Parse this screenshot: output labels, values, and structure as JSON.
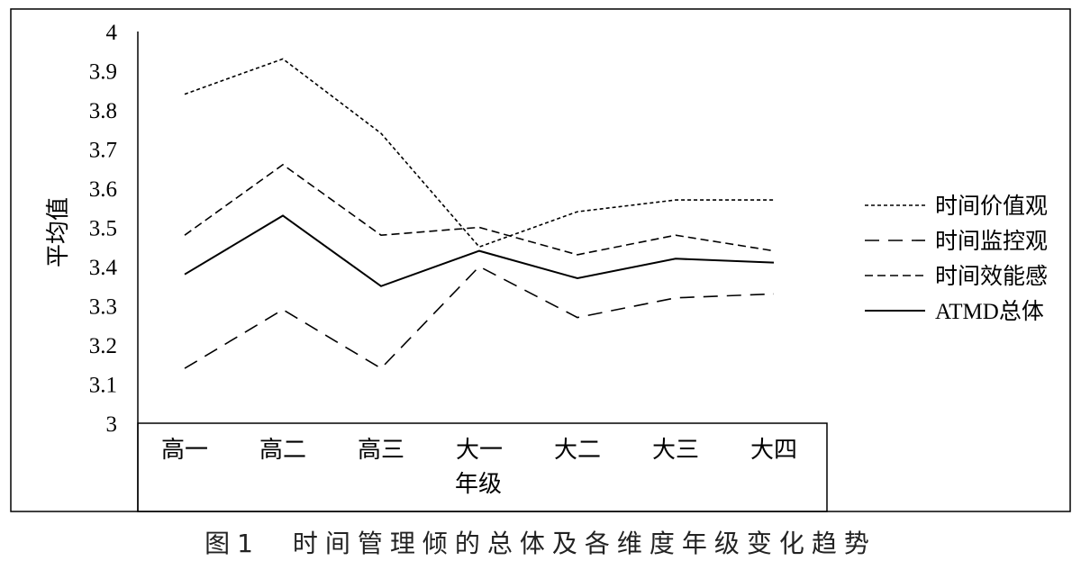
{
  "caption": "图1　时间管理倾的总体及各维度年级变化趋势",
  "chart_data": {
    "type": "line",
    "xlabel": "年级",
    "ylabel": "平均值",
    "categories": [
      "高一",
      "高二",
      "高三",
      "大一",
      "大二",
      "大三",
      "大四"
    ],
    "ylim": [
      3,
      4
    ],
    "yticks": [
      "3",
      "3.1",
      "3.2",
      "3.3",
      "3.4",
      "3.5",
      "3.6",
      "3.7",
      "3.8",
      "3.9",
      "4"
    ],
    "grid": false,
    "legend_position": "right",
    "series": [
      {
        "name": "时间价值观",
        "style": "dotted-short",
        "values": [
          3.84,
          3.93,
          3.74,
          3.45,
          3.54,
          3.57,
          3.57
        ]
      },
      {
        "name": "时间监控观",
        "style": "dashed-long",
        "values": [
          3.14,
          3.29,
          3.14,
          3.4,
          3.27,
          3.32,
          3.33
        ]
      },
      {
        "name": "时间效能感",
        "style": "dashed-medium",
        "values": [
          3.48,
          3.66,
          3.48,
          3.5,
          3.43,
          3.48,
          3.44
        ]
      },
      {
        "name": "ATMD总体",
        "style": "solid",
        "values": [
          3.38,
          3.53,
          3.35,
          3.44,
          3.37,
          3.42,
          3.41
        ]
      }
    ]
  }
}
